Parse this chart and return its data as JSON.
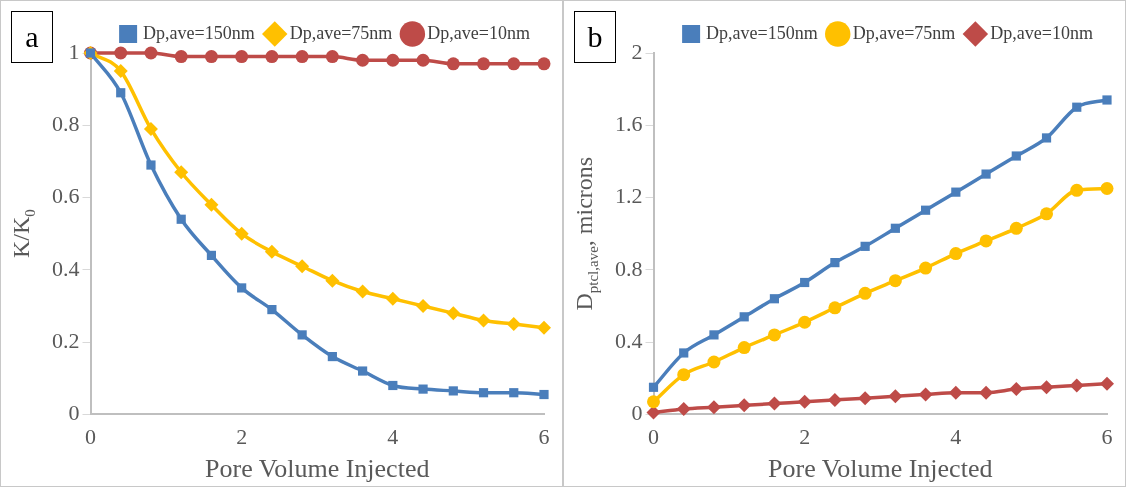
{
  "chart_data": [
    {
      "type": "line",
      "annotations": [
        "a"
      ],
      "xlabel": "Pore Volume Injected",
      "ylabel": "K/K$_{0}$",
      "x": [
        0,
        0.4,
        0.8,
        1.2,
        1.6,
        2,
        2.4,
        2.8,
        3.2,
        3.6,
        4,
        4.4,
        4.8,
        5.2,
        5.6,
        6
      ],
      "series": [
        {
          "name": "Dp,ave=150nm",
          "color": "#4a7ebb",
          "marker": "square",
          "values": [
            1,
            0.89,
            0.69,
            0.54,
            0.44,
            0.35,
            0.29,
            0.22,
            0.16,
            0.12,
            0.08,
            0.07,
            0.065,
            0.06,
            0.06,
            0.055
          ]
        },
        {
          "name": "Dp,ave=75nm",
          "color": "#ffc000",
          "marker": "diamond",
          "values": [
            1,
            0.95,
            0.79,
            0.67,
            0.58,
            0.5,
            0.45,
            0.41,
            0.37,
            0.34,
            0.32,
            0.3,
            0.28,
            0.26,
            0.25,
            0.24
          ]
        },
        {
          "name": "Dp,ave=10nm",
          "color": "#be4b48",
          "marker": "circle",
          "values": [
            1,
            1,
            1,
            0.99,
            0.99,
            0.99,
            0.99,
            0.99,
            0.99,
            0.98,
            0.98,
            0.98,
            0.97,
            0.97,
            0.97,
            0.97
          ]
        }
      ],
      "xlim": [
        0,
        6
      ],
      "xticks": [
        0,
        2,
        4,
        6
      ],
      "ylim": [
        0,
        1
      ],
      "yticks": [
        0,
        0.2,
        0.4,
        0.6,
        0.8,
        1
      ],
      "legend": "top",
      "grid": false
    },
    {
      "type": "line",
      "annotations": [
        "b"
      ],
      "xlabel": "Pore Volume Injected",
      "ylabel": "D$_{ptcl,ave}$, microns",
      "x": [
        0,
        0.4,
        0.8,
        1.2,
        1.6,
        2,
        2.4,
        2.8,
        3.2,
        3.6,
        4,
        4.4,
        4.8,
        5.2,
        5.6,
        6
      ],
      "series": [
        {
          "name": "Dp,ave=150nm",
          "color": "#4a7ebb",
          "marker": "square",
          "values": [
            0.15,
            0.34,
            0.44,
            0.54,
            0.64,
            0.73,
            0.84,
            0.93,
            1.03,
            1.13,
            1.23,
            1.33,
            1.43,
            1.53,
            1.7,
            1.74
          ]
        },
        {
          "name": "Dp,ave=75nm",
          "color": "#ffc000",
          "marker": "circle",
          "values": [
            0.07,
            0.22,
            0.29,
            0.37,
            0.44,
            0.51,
            0.59,
            0.67,
            0.74,
            0.81,
            0.89,
            0.96,
            1.03,
            1.11,
            1.24,
            1.25
          ]
        },
        {
          "name": "Dp,ave=10nm",
          "color": "#be4b48",
          "marker": "diamond",
          "values": [
            0.01,
            0.03,
            0.04,
            0.05,
            0.06,
            0.07,
            0.08,
            0.09,
            0.1,
            0.11,
            0.12,
            0.12,
            0.14,
            0.15,
            0.16,
            0.17
          ]
        }
      ],
      "xlim": [
        0,
        6
      ],
      "xticks": [
        0,
        2,
        4,
        6
      ],
      "ylim": [
        0,
        2
      ],
      "yticks": [
        0,
        0.4,
        0.8,
        1.2,
        1.6,
        2
      ],
      "legend": "top",
      "grid": false
    }
  ]
}
